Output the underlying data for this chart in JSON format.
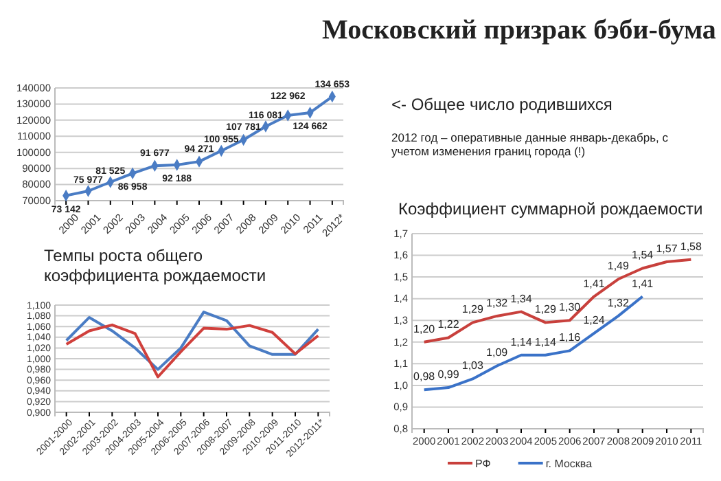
{
  "chart_data": [
    {
      "type": "line",
      "title": "Московский призрак бэби-бума",
      "annotations": [
        "<- Общее число родившихся",
        "2012 год – оперативные данные январь-декабрь, с учетом изменения границ города (!)"
      ],
      "categories": [
        "2000",
        "2001",
        "2002",
        "2003",
        "2004",
        "2005",
        "2006",
        "2007",
        "2008",
        "2009",
        "2010",
        "2011",
        "2012*"
      ],
      "series": [
        {
          "color": "#4a7cc4",
          "values": [
            73142,
            75977,
            81525,
            86958,
            91677,
            92188,
            94271,
            100955,
            107781,
            116081,
            122962,
            124662,
            134653
          ],
          "value_labels": [
            "73 142",
            "75 977",
            "81 525",
            "86 958",
            "91 677",
            "92 188",
            "94 271",
            "100 955",
            "107 781",
            "116 081",
            "122 962",
            "124 662",
            "134 653"
          ]
        }
      ],
      "ylim": [
        70000,
        140000
      ],
      "yticks": [
        70000,
        80000,
        90000,
        100000,
        110000,
        120000,
        130000,
        140000
      ],
      "grid": "y",
      "marker": "diamond",
      "legend": false
    },
    {
      "type": "line",
      "title": "Темпы роста общего коэффициента рождаемости",
      "categories": [
        "2001-2000",
        "2002-2001",
        "2003-2002",
        "2004-2003",
        "2005-2004",
        "2006-2005",
        "2007-2006",
        "2008-2007",
        "2009-2008",
        "2010-2009",
        "2011-2010",
        "2012-2011*"
      ],
      "series": [
        {
          "color": "#4a7cc4",
          "values": [
            1.034,
            1.077,
            1.052,
            1.02,
            0.98,
            1.02,
            1.087,
            1.071,
            1.024,
            1.008,
            1.008,
            1.055
          ]
        },
        {
          "color": "#d0403c",
          "values": [
            1.027,
            1.052,
            1.063,
            1.047,
            0.966,
            1.013,
            1.057,
            1.055,
            1.062,
            1.049,
            1.009,
            1.043
          ]
        }
      ],
      "ylim": [
        0.9,
        1.1
      ],
      "yticks": [
        {
          "value": 0.9,
          "label": "0,900"
        },
        {
          "value": 0.92,
          "label": "0,920"
        },
        {
          "value": 0.94,
          "label": "0,940"
        },
        {
          "value": 0.96,
          "label": "0,960"
        },
        {
          "value": 0.98,
          "label": "0,980"
        },
        {
          "value": 1.0,
          "label": "1,000"
        },
        {
          "value": 1.02,
          "label": "1,020"
        },
        {
          "value": 1.04,
          "label": "1,040"
        },
        {
          "value": 1.06,
          "label": "1,060"
        },
        {
          "value": 1.08,
          "label": "1,080"
        },
        {
          "value": 1.1,
          "label": "1,100"
        }
      ],
      "grid": "y",
      "legend": false
    },
    {
      "type": "line",
      "title": "Коэффициент суммарной рождаемости",
      "categories": [
        "2000",
        "2001",
        "2002",
        "2003",
        "2004",
        "2005",
        "2006",
        "2007",
        "2008",
        "2009",
        "2010",
        "2011"
      ],
      "series": [
        {
          "name": "РФ",
          "color": "#c8403c",
          "values": [
            1.2,
            1.22,
            1.29,
            1.32,
            1.34,
            1.29,
            1.3,
            1.41,
            1.49,
            1.54,
            1.57,
            1.58
          ],
          "value_labels": [
            "1,20",
            "1,22",
            "1,29",
            "1,32",
            "1,34",
            "1,29",
            "1,30",
            "1,41",
            "1,49",
            "1,54",
            "1,57",
            "1,58"
          ]
        },
        {
          "name": "г. Москва",
          "color": "#3a72c8",
          "values": [
            0.98,
            0.99,
            1.03,
            1.09,
            1.14,
            1.14,
            1.16,
            1.24,
            1.32,
            1.41,
            null,
            null
          ],
          "value_labels": [
            "0,98",
            "0,99",
            "1,03",
            "1,09",
            "1,14",
            "1,14",
            "1,16",
            "1,24",
            "1,32",
            "1,41",
            null,
            null
          ]
        }
      ],
      "ylim": [
        0.8,
        1.7
      ],
      "yticks": [
        {
          "value": 0.8,
          "label": "0,8"
        },
        {
          "value": 0.9,
          "label": "0,9"
        },
        {
          "value": 1.0,
          "label": "1,0"
        },
        {
          "value": 1.1,
          "label": "1,1"
        },
        {
          "value": 1.2,
          "label": "1,2"
        },
        {
          "value": 1.3,
          "label": "1,3"
        },
        {
          "value": 1.4,
          "label": "1,4"
        },
        {
          "value": 1.5,
          "label": "1,5"
        },
        {
          "value": 1.6,
          "label": "1,6"
        },
        {
          "value": 1.7,
          "label": "1,7"
        }
      ],
      "grid": "y",
      "legend": "bottom"
    }
  ]
}
